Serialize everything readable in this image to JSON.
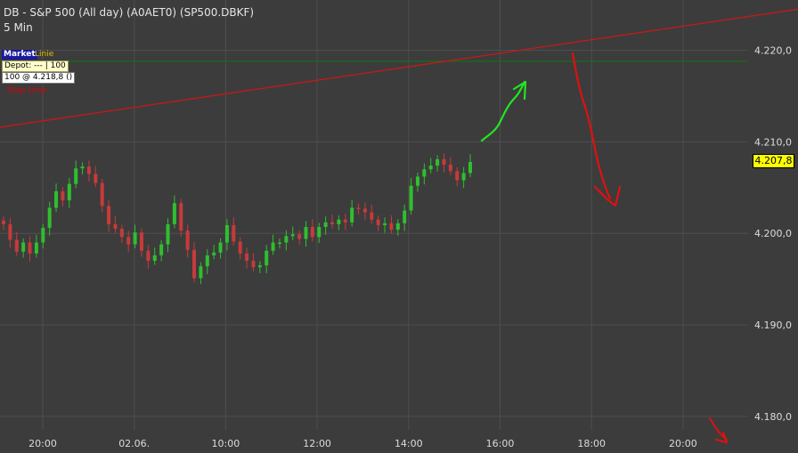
{
  "header": {
    "title": "DB - S&P 500 (All day) (A0AET0) (SP500.DBKF)",
    "interval": "5 Min"
  },
  "overlay_labels": {
    "market": "Market",
    "linie": "Linie",
    "depot": "Depot: --- | 100",
    "order": "100 @ 4.218,8 ()",
    "stop": "Stop Linie"
  },
  "last_price": "4.207,8",
  "colors": {
    "background": "#3c3c3c",
    "grid": "#4e4e4e",
    "axis_text": "#dcdcdc",
    "up": "#2fbf2f",
    "down": "#c83a3a",
    "trendline": "#c81818",
    "horizontal_line": "#156e15",
    "annotation_green": "#22e622",
    "annotation_red": "#e01010",
    "price_tag": "#ffff00"
  },
  "chart_data": {
    "type": "candlestick",
    "ylim": [
      4176,
      4225.5
    ],
    "y_ticks": [
      4180,
      4190,
      4200,
      4210,
      4220
    ],
    "y_tick_labels": [
      "4.180,0",
      "4.190,0",
      "4.200,0",
      "4.210,0",
      "4.220,0"
    ],
    "x_tick_labels": [
      "20:00",
      "02.06.",
      "10:00",
      "12:00",
      "14:00",
      "16:00",
      "18:00",
      "20:00"
    ],
    "grid": true,
    "horizontal_line_value": 4218.8,
    "trendline": {
      "start_value": 4211.6,
      "end_value": 4224.5
    },
    "last_price": 4207.8,
    "close_series": [
      4201.0,
      4199.3,
      4198.0,
      4199.0,
      4197.8,
      4199.0,
      4200.6,
      4202.8,
      4204.6,
      4203.6,
      4205.4,
      4207.1,
      4207.3,
      4206.5,
      4205.5,
      4203.0,
      4201.0,
      4200.5,
      4199.6,
      4198.8,
      4200.1,
      4198.1,
      4197.0,
      4197.6,
      4198.8,
      4201.0,
      4203.3,
      4200.3,
      4198.2,
      4195.1,
      4196.4,
      4197.6,
      4197.9,
      4199.0,
      4200.9,
      4199.1,
      4197.8,
      4197.0,
      4196.3,
      4196.5,
      4198.1,
      4199.0,
      4199.0,
      4199.7,
      4199.9,
      4199.4,
      4200.7,
      4199.6,
      4200.7,
      4201.2,
      4201.0,
      4201.5,
      4201.2,
      4202.8,
      4202.7,
      4202.3,
      4201.5,
      4200.9,
      4201.1,
      4200.4,
      4201.1,
      4202.5,
      4205.2,
      4206.2,
      4207.0,
      4207.4,
      4208.1,
      4207.5,
      4206.8,
      4205.8,
      4206.6,
      4207.8
    ]
  }
}
